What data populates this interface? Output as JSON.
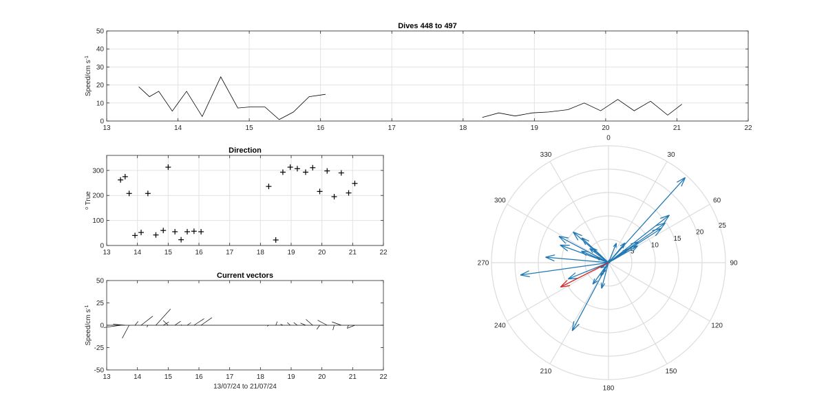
{
  "chart_data": [
    {
      "type": "line",
      "title": "Dives 448 to 497",
      "xlabel": "",
      "ylabel": "Speed/cm s",
      "ylabel_sup": "-1",
      "xlim": [
        13,
        22
      ],
      "ylim": [
        0,
        50
      ],
      "xticks": [
        "13",
        "14",
        "15",
        "16",
        "17",
        "18",
        "19",
        "20",
        "21",
        "22"
      ],
      "yticks": [
        "0",
        "10",
        "20",
        "30",
        "40",
        "50"
      ],
      "grid": true,
      "series": [
        {
          "x": [
            13.45,
            13.6,
            13.73,
            13.92,
            14.12,
            14.34,
            14.6,
            14.84,
            15.0,
            15.22,
            15.42,
            15.62,
            15.84,
            16.07
          ],
          "y": [
            19,
            13.5,
            16.5,
            5.5,
            16.5,
            2.5,
            24.5,
            7.2,
            7.8,
            7.8,
            0.8,
            5,
            13.5,
            14.8
          ]
        },
        {
          "x": [
            18.27,
            18.5,
            18.73,
            18.97,
            19.2,
            19.47,
            19.7,
            19.93,
            20.17,
            20.4,
            20.63,
            20.87,
            21.07
          ],
          "y": [
            2,
            4.5,
            2.8,
            4.5,
            5,
            6.3,
            10,
            5.7,
            12,
            5.7,
            11,
            3.3,
            9.3
          ]
        }
      ]
    },
    {
      "type": "scatter",
      "title": "Direction",
      "xlabel": "",
      "ylabel": "True",
      "ylabel_sup": "o",
      "marker": "+",
      "xlim": [
        13,
        22
      ],
      "ylim": [
        0,
        360
      ],
      "xticks": [
        "13",
        "14",
        "15",
        "16",
        "17",
        "18",
        "19",
        "20",
        "21",
        "22"
      ],
      "yticks": [
        "0",
        "100",
        "200",
        "300"
      ],
      "grid": true,
      "x": [
        13.45,
        13.6,
        13.73,
        13.92,
        14.12,
        14.34,
        14.6,
        14.84,
        15.0,
        15.22,
        15.42,
        15.62,
        15.84,
        16.07,
        18.27,
        18.5,
        18.73,
        18.97,
        19.2,
        19.47,
        19.7,
        19.93,
        20.17,
        20.4,
        20.63,
        20.87,
        21.07
      ],
      "y": [
        262,
        275,
        208,
        40,
        52,
        208,
        42,
        60,
        313,
        55,
        23,
        55,
        57,
        55,
        236,
        22,
        293,
        313,
        307,
        293,
        311,
        216,
        298,
        195,
        290,
        210,
        248
      ]
    },
    {
      "type": "line",
      "title": "Current vectors",
      "xlabel": "13/07/24 to 21/07/24",
      "ylabel": "Speed/cm s",
      "ylabel_sup": "-1",
      "subtype": "feather",
      "xlim": [
        13,
        22
      ],
      "ylim": [
        -50,
        50
      ],
      "xticks": [
        "13",
        "14",
        "15",
        "16",
        "17",
        "18",
        "19",
        "20",
        "21",
        "22"
      ],
      "yticks": [
        "-50",
        "-25",
        "0",
        "25",
        "50"
      ],
      "grid": false,
      "x": [
        13.45,
        13.6,
        13.73,
        13.92,
        14.12,
        14.34,
        14.6,
        14.84,
        15.0,
        15.22,
        15.42,
        15.62,
        15.84,
        16.07,
        18.27,
        18.5,
        18.73,
        18.97,
        19.2,
        19.47,
        19.7,
        19.93,
        20.17,
        20.4,
        20.63,
        20.87,
        21.07
      ],
      "speed": [
        19,
        13.5,
        16.5,
        5.5,
        16.5,
        2.5,
        24.5,
        7.2,
        7.8,
        7.8,
        0.8,
        5,
        13.5,
        14.8,
        2,
        4.5,
        2.8,
        4.5,
        5,
        6.3,
        10,
        5.7,
        12,
        5.7,
        11,
        3.3,
        9.3
      ],
      "direction": [
        262,
        275,
        208,
        40,
        52,
        208,
        42,
        60,
        313,
        55,
        23,
        55,
        57,
        55,
        236,
        22,
        293,
        313,
        307,
        293,
        311,
        216,
        298,
        195,
        290,
        210,
        248
      ]
    },
    {
      "type": "scatter",
      "subtype": "compass",
      "title": "",
      "rlim": [
        0,
        25
      ],
      "rticks": [
        "5",
        "10",
        "15",
        "20",
        "25"
      ],
      "theta_ticks": [
        "0",
        "30",
        "60",
        "90",
        "120",
        "150",
        "180",
        "210",
        "240",
        "270",
        "300",
        "330"
      ],
      "grid": true,
      "speed": [
        19,
        13.5,
        16.5,
        5.5,
        16.5,
        2.5,
        24.5,
        7.2,
        7.8,
        7.8,
        0.8,
        5,
        13.5,
        14.8,
        2,
        4.5,
        2.8,
        4.5,
        5,
        6.3,
        10,
        5.7,
        12,
        5.7,
        11,
        3.3,
        9.3
      ],
      "direction": [
        262,
        275,
        208,
        40,
        52,
        208,
        42,
        60,
        313,
        55,
        23,
        55,
        57,
        55,
        236,
        22,
        293,
        313,
        307,
        293,
        311,
        216,
        298,
        195,
        290,
        210,
        248
      ],
      "mean_vector": {
        "speed": 11.5,
        "direction": 243
      },
      "colors": {
        "vectors": "#1f77b4",
        "mean": "#d62728"
      }
    }
  ]
}
